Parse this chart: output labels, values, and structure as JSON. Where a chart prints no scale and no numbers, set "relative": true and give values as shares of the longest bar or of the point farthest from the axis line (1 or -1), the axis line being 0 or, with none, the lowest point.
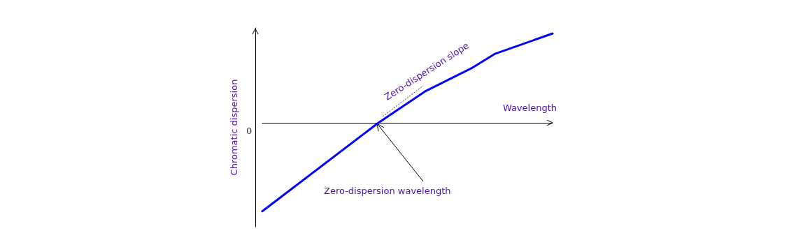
{
  "chart_data": {
    "type": "line",
    "relative": true,
    "xlabel": "Wavelength",
    "ylabel": "Chromatic dispersion",
    "categories": [
      null,
      null,
      null,
      null,
      null,
      null,
      null,
      null,
      null,
      null,
      null,
      null,
      null,
      null,
      null,
      null,
      null,
      null,
      null,
      null,
      null,
      null,
      null,
      null,
      null,
      null
    ],
    "series": [
      {
        "color": "#0000ff",
        "values": [
          -0.99,
          null,
          null,
          null,
          null,
          null,
          null,
          null,
          null,
          null,
          0,
          null,
          null,
          null,
          0.35,
          null,
          null,
          null,
          0.61,
          null,
          0.77,
          null,
          null,
          null,
          null,
          1
        ]
      }
    ],
    "annotations": [
      "0",
      "Zero-dispersion slope",
      "Zero-dispersion wavelength"
    ],
    "grid": false,
    "marker": "none",
    "line_style": "solid"
  }
}
